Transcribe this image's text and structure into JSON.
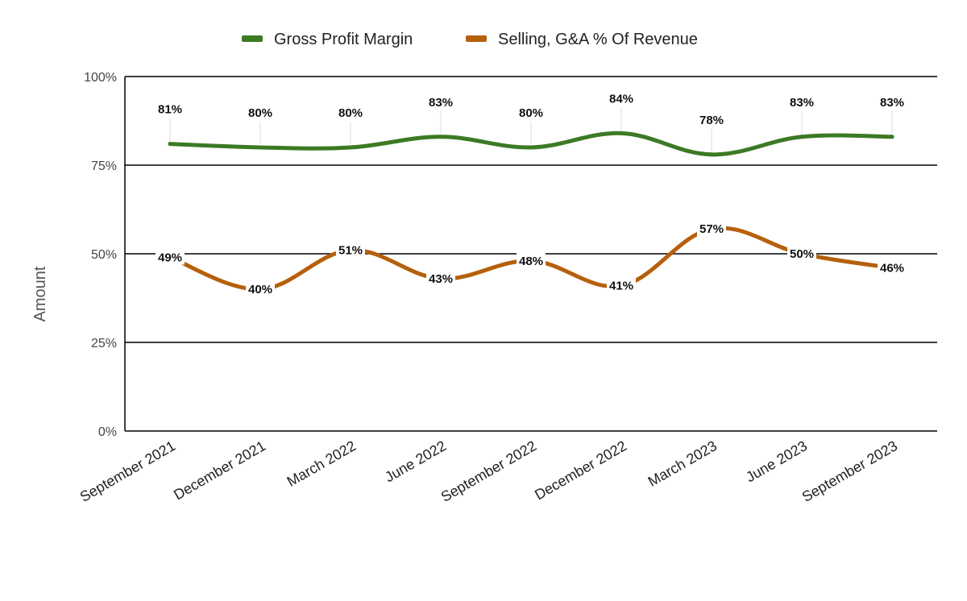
{
  "chart_data": {
    "type": "line",
    "title": "",
    "xlabel": "",
    "ylabel": "Amount",
    "ylim": [
      0,
      100
    ],
    "y_ticks": [
      "0%",
      "25%",
      "50%",
      "75%",
      "100%"
    ],
    "grid": true,
    "legend_position": "top",
    "categories": [
      "September 2021",
      "December 2021",
      "March 2022",
      "June 2022",
      "September 2022",
      "December 2022",
      "March 2023",
      "June 2023",
      "September 2023"
    ],
    "series": [
      {
        "name": "Gross Profit Margin",
        "color": "#3c7a24",
        "values": [
          81,
          80,
          80,
          83,
          80,
          84,
          78,
          83,
          83
        ],
        "labels": [
          "81%",
          "80%",
          "80%",
          "83%",
          "80%",
          "84%",
          "78%",
          "83%",
          "83%"
        ],
        "label_position": "above"
      },
      {
        "name": "Selling, G&A % Of Revenue",
        "color": "#b5600b",
        "values": [
          49,
          40,
          51,
          43,
          48,
          41,
          57,
          50,
          46
        ],
        "labels": [
          "49%",
          "40%",
          "51%",
          "43%",
          "48%",
          "41%",
          "57%",
          "50%",
          "46%"
        ],
        "label_position": "center"
      }
    ]
  }
}
